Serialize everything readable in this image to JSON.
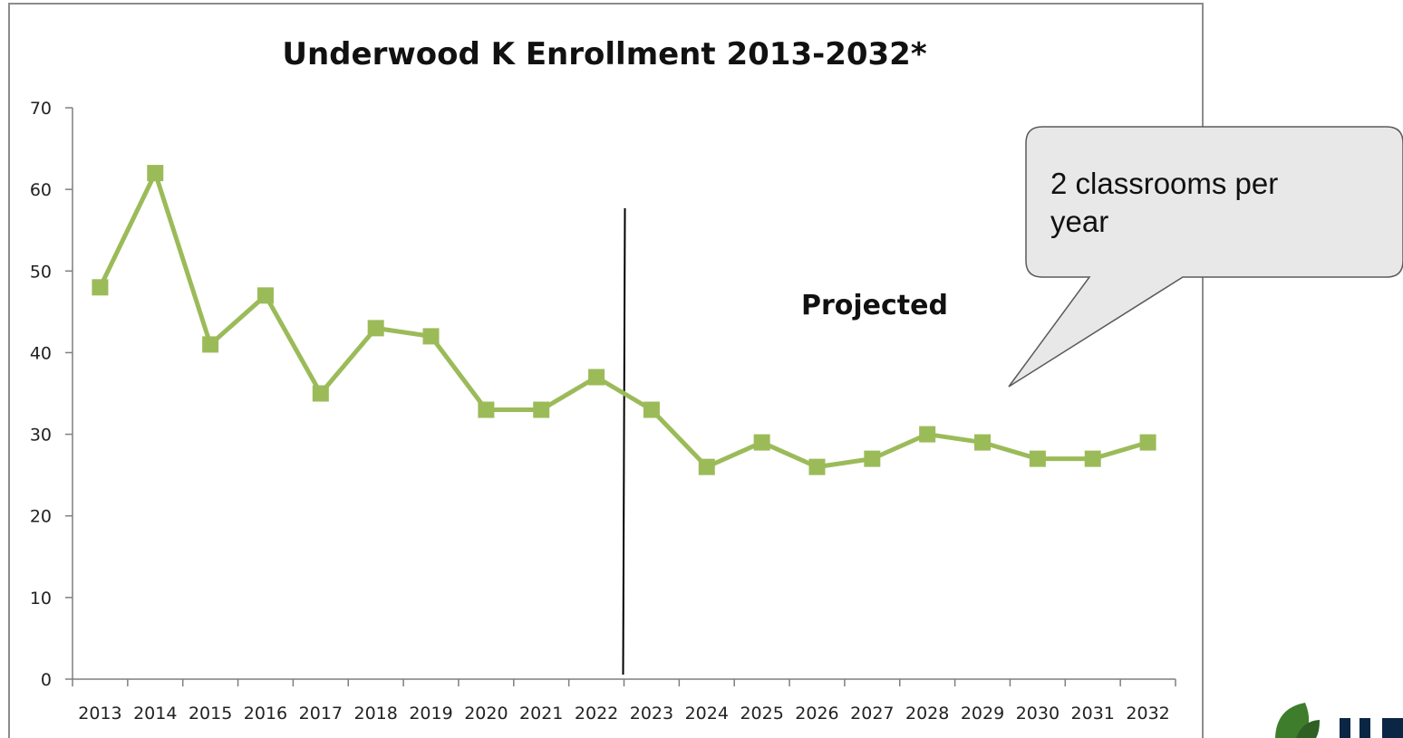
{
  "chart_data": {
    "type": "line",
    "title": "Underwood K Enrollment 2013-2032*",
    "xlabel": "",
    "ylabel": "",
    "categories": [
      "2013",
      "2014",
      "2015",
      "2016",
      "2017",
      "2018",
      "2019",
      "2020",
      "2021",
      "2022",
      "2023",
      "2024",
      "2025",
      "2026",
      "2027",
      "2028",
      "2029",
      "2030",
      "2031",
      "2032"
    ],
    "series": [
      {
        "values": [
          48,
          62,
          41,
          47,
          35,
          43,
          42,
          33,
          33,
          37,
          33,
          26,
          29,
          26,
          27,
          30,
          29,
          27,
          27,
          29
        ]
      }
    ],
    "ylim": [
      0,
      70
    ],
    "yticks": [
      "0",
      "10",
      "20",
      "30",
      "40",
      "50",
      "60",
      "70"
    ],
    "grid": false,
    "legend": "none",
    "divider_after_category": "2022",
    "annotation": "Projected",
    "callout": "2 classrooms per year",
    "series_color": "#9bbb59",
    "marker": "square"
  }
}
